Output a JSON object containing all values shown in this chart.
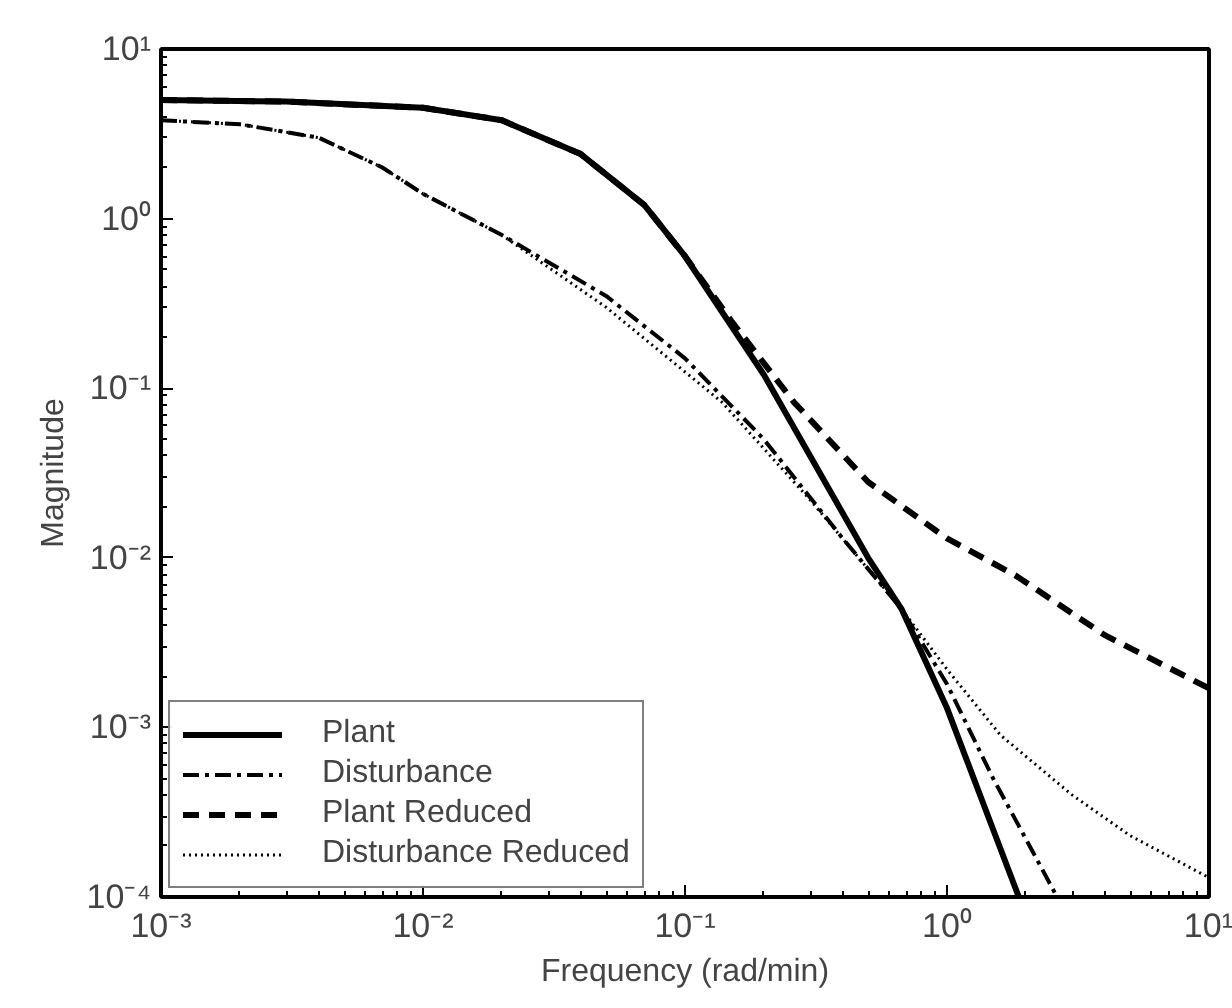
{
  "chart_data": {
    "type": "line",
    "xlabel": "Frequency (rad/min)",
    "ylabel": "Magnitude",
    "log": "xy",
    "grid": false,
    "legend": "bottom left",
    "xlim": [
      0.001,
      10
    ],
    "ylim": [
      0.0001,
      10
    ],
    "xticks": [
      {
        "value": 0.001,
        "label": "10⁻³"
      },
      {
        "value": 0.01,
        "label": "10⁻²"
      },
      {
        "value": 0.1,
        "label": "10⁻¹"
      },
      {
        "value": 1,
        "label": "10⁰"
      },
      {
        "value": 10,
        "label": "10¹"
      }
    ],
    "yticks": [
      {
        "value": 0.0001,
        "label": "10⁻⁴"
      },
      {
        "value": 0.001,
        "label": "10⁻³"
      },
      {
        "value": 0.01,
        "label": "10⁻²"
      },
      {
        "value": 0.1,
        "label": "10⁻¹"
      },
      {
        "value": 1,
        "label": "10⁰"
      },
      {
        "value": 10,
        "label": "10¹"
      }
    ],
    "series": [
      {
        "name": "Plant",
        "color": "#000000",
        "line_style": "solid",
        "x": [
          0.001,
          0.003,
          0.01,
          0.02,
          0.04,
          0.07,
          0.1,
          0.2,
          0.3,
          0.5,
          0.67,
          1.0,
          1.5,
          1.88
        ],
        "values": [
          5.0,
          4.9,
          4.5,
          3.8,
          2.4,
          1.2,
          0.6,
          0.12,
          0.04,
          0.01,
          0.005,
          0.0013,
          0.00025,
          0.0001
        ]
      },
      {
        "name": "Disturbance",
        "color": "#000000",
        "line_style": "dashdot",
        "x": [
          0.001,
          0.002,
          0.004,
          0.007,
          0.01,
          0.02,
          0.05,
          0.1,
          0.2,
          0.4,
          0.67,
          1.0,
          1.5,
          2.0,
          2.63
        ],
        "values": [
          3.8,
          3.6,
          3.0,
          2.0,
          1.4,
          0.8,
          0.35,
          0.15,
          0.05,
          0.013,
          0.005,
          0.0018,
          0.0005,
          0.00022,
          0.0001
        ]
      },
      {
        "name": "Plant Reduced",
        "color": "#000000",
        "line_style": "dashed",
        "x": [
          0.001,
          0.003,
          0.01,
          0.02,
          0.04,
          0.07,
          0.1,
          0.15,
          0.26,
          0.5,
          1.0,
          1.82,
          4,
          10
        ],
        "values": [
          5.0,
          4.9,
          4.5,
          3.8,
          2.4,
          1.2,
          0.6,
          0.25,
          0.083,
          0.028,
          0.013,
          0.0079,
          0.0035,
          0.0017
        ]
      },
      {
        "name": "Disturbance Reduced",
        "color": "#000000",
        "line_style": "dotted",
        "x": [
          0.001,
          0.002,
          0.004,
          0.007,
          0.01,
          0.02,
          0.05,
          0.138,
          0.3,
          0.67,
          1.0,
          1.6,
          3,
          5,
          10
        ],
        "values": [
          3.8,
          3.6,
          3.0,
          2.0,
          1.4,
          0.8,
          0.3,
          0.083,
          0.022,
          0.005,
          0.0022,
          0.0009,
          0.0004,
          0.00023,
          0.00013
        ]
      }
    ]
  }
}
